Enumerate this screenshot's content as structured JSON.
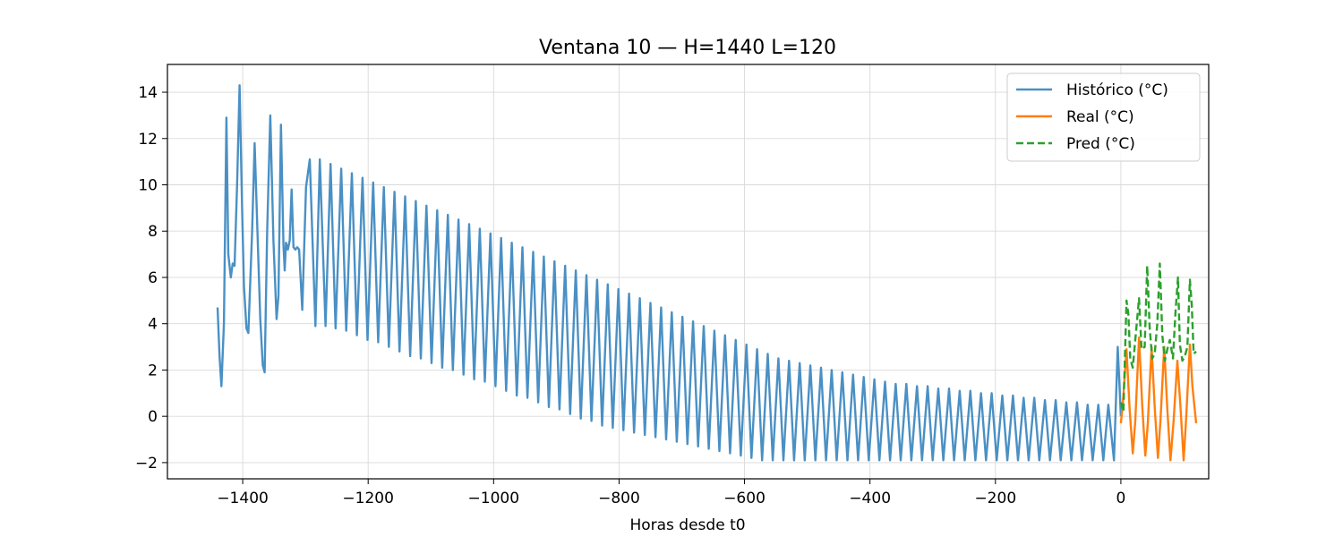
{
  "chart_data": {
    "type": "line",
    "title": "Ventana 10 — H=1440  L=120",
    "xlabel": "Horas desde t0",
    "ylabel": "",
    "xlim": [
      -1520,
      140
    ],
    "ylim": [
      -2.7,
      15.2
    ],
    "xticks": [
      -1400,
      -1200,
      -1000,
      -800,
      -600,
      -400,
      -200,
      0
    ],
    "xtick_labels": [
      "−1400",
      "−1200",
      "−1000",
      "−800",
      "−600",
      "−400",
      "−200",
      "0"
    ],
    "yticks": [
      -2,
      0,
      2,
      4,
      6,
      8,
      10,
      12,
      14
    ],
    "ytick_labels": [
      "−2",
      "0",
      "2",
      "4",
      "6",
      "8",
      "10",
      "12",
      "14"
    ],
    "grid": true,
    "legend_position": "top-right",
    "series": [
      {
        "name": "Histórico (°C)",
        "color": "#4a90c4",
        "dash": "solid",
        "points": [
          [
            -1440,
            4.7
          ],
          [
            -1437,
            2.6
          ],
          [
            -1434,
            1.3
          ],
          [
            -1430,
            4.0
          ],
          [
            -1426,
            12.9
          ],
          [
            -1423,
            7.0
          ],
          [
            -1419,
            6.0
          ],
          [
            -1416,
            6.6
          ],
          [
            -1413,
            6.5
          ],
          [
            -1409,
            10.0
          ],
          [
            -1405,
            14.3
          ],
          [
            -1401,
            9.0
          ],
          [
            -1398,
            5.6
          ],
          [
            -1394,
            3.8
          ],
          [
            -1391,
            3.6
          ],
          [
            -1385,
            8.0
          ],
          [
            -1381,
            11.8
          ],
          [
            -1377,
            8.4
          ],
          [
            -1372,
            4.2
          ],
          [
            -1368,
            2.2
          ],
          [
            -1365,
            1.9
          ],
          [
            -1361,
            8.0
          ],
          [
            -1356,
            13.0
          ],
          [
            -1351,
            7.6
          ],
          [
            -1346,
            4.2
          ],
          [
            -1343,
            5.2
          ],
          [
            -1339,
            12.6
          ],
          [
            -1335,
            7.4
          ],
          [
            -1333,
            6.3
          ],
          [
            -1331,
            7.5
          ],
          [
            -1328,
            7.2
          ],
          [
            -1325,
            7.6
          ],
          [
            -1322,
            9.8
          ],
          [
            -1319,
            7.3
          ],
          [
            -1316,
            7.2
          ],
          [
            -1313,
            7.3
          ],
          [
            -1310,
            7.2
          ],
          [
            -1305,
            4.6
          ],
          [
            -1299,
            9.9
          ],
          [
            -1293,
            11.1
          ],
          [
            -1284,
            3.9
          ],
          [
            -1277,
            11.1
          ],
          [
            -1268,
            3.9
          ],
          [
            -1260,
            10.9
          ],
          [
            -1252,
            3.8
          ],
          [
            -1243,
            10.7
          ],
          [
            -1235,
            3.7
          ],
          [
            -1226,
            10.5
          ],
          [
            -1218,
            3.5
          ],
          [
            -1209,
            10.3
          ],
          [
            -1201,
            3.3
          ],
          [
            -1192,
            10.1
          ],
          [
            -1184,
            3.2
          ],
          [
            -1175,
            9.9
          ],
          [
            -1167,
            3.0
          ],
          [
            -1158,
            9.7
          ],
          [
            -1150,
            2.8
          ],
          [
            -1141,
            9.5
          ],
          [
            -1133,
            2.6
          ],
          [
            -1124,
            9.3
          ],
          [
            -1116,
            2.5
          ],
          [
            -1107,
            9.1
          ],
          [
            -1099,
            2.3
          ],
          [
            -1090,
            8.9
          ],
          [
            -1082,
            2.1
          ],
          [
            -1073,
            8.7
          ],
          [
            -1065,
            2.0
          ],
          [
            -1056,
            8.5
          ],
          [
            -1048,
            1.8
          ],
          [
            -1039,
            8.3
          ],
          [
            -1031,
            1.6
          ],
          [
            -1022,
            8.1
          ],
          [
            -1014,
            1.5
          ],
          [
            -1005,
            7.9
          ],
          [
            -997,
            1.3
          ],
          [
            -988,
            7.7
          ],
          [
            -980,
            1.1
          ],
          [
            -971,
            7.5
          ],
          [
            -963,
            0.9
          ],
          [
            -954,
            7.3
          ],
          [
            -946,
            0.8
          ],
          [
            -937,
            7.1
          ],
          [
            -929,
            0.6
          ],
          [
            -920,
            6.9
          ],
          [
            -912,
            0.4
          ],
          [
            -903,
            6.7
          ],
          [
            -895,
            0.3
          ],
          [
            -886,
            6.5
          ],
          [
            -878,
            0.1
          ],
          [
            -869,
            6.3
          ],
          [
            -861,
            -0.1
          ],
          [
            -852,
            6.1
          ],
          [
            -844,
            -0.2
          ],
          [
            -835,
            5.9
          ],
          [
            -827,
            -0.4
          ],
          [
            -818,
            5.7
          ],
          [
            -810,
            -0.5
          ],
          [
            -801,
            5.5
          ],
          [
            -793,
            -0.6
          ],
          [
            -784,
            5.3
          ],
          [
            -776,
            -0.7
          ],
          [
            -767,
            5.1
          ],
          [
            -759,
            -0.8
          ],
          [
            -750,
            4.9
          ],
          [
            -742,
            -0.9
          ],
          [
            -733,
            4.7
          ],
          [
            -725,
            -1.0
          ],
          [
            -716,
            4.5
          ],
          [
            -708,
            -1.1
          ],
          [
            -699,
            4.3
          ],
          [
            -691,
            -1.2
          ],
          [
            -682,
            4.1
          ],
          [
            -674,
            -1.3
          ],
          [
            -665,
            3.9
          ],
          [
            -657,
            -1.4
          ],
          [
            -648,
            3.7
          ],
          [
            -640,
            -1.5
          ],
          [
            -631,
            3.5
          ],
          [
            -623,
            -1.6
          ],
          [
            -614,
            3.3
          ],
          [
            -606,
            -1.7
          ],
          [
            -597,
            3.1
          ],
          [
            -589,
            -1.8
          ],
          [
            -580,
            2.9
          ],
          [
            -572,
            -1.9
          ],
          [
            -563,
            2.7
          ],
          [
            -555,
            -1.9
          ],
          [
            -546,
            2.5
          ],
          [
            -538,
            -1.9
          ],
          [
            -529,
            2.4
          ],
          [
            -521,
            -1.9
          ],
          [
            -512,
            2.3
          ],
          [
            -504,
            -1.9
          ],
          [
            -495,
            2.2
          ],
          [
            -487,
            -1.9
          ],
          [
            -478,
            2.1
          ],
          [
            -470,
            -1.9
          ],
          [
            -461,
            2.0
          ],
          [
            -453,
            -1.9
          ],
          [
            -444,
            1.9
          ],
          [
            -436,
            -1.9
          ],
          [
            -427,
            1.8
          ],
          [
            -419,
            -1.9
          ],
          [
            -410,
            1.7
          ],
          [
            -402,
            -1.9
          ],
          [
            -393,
            1.6
          ],
          [
            -385,
            -1.9
          ],
          [
            -376,
            1.5
          ],
          [
            -368,
            -1.9
          ],
          [
            -359,
            1.4
          ],
          [
            -351,
            -1.9
          ],
          [
            -342,
            1.4
          ],
          [
            -334,
            -1.9
          ],
          [
            -325,
            1.3
          ],
          [
            -317,
            -1.9
          ],
          [
            -308,
            1.3
          ],
          [
            -300,
            -1.9
          ],
          [
            -291,
            1.2
          ],
          [
            -283,
            -1.9
          ],
          [
            -274,
            1.2
          ],
          [
            -266,
            -1.9
          ],
          [
            -257,
            1.1
          ],
          [
            -249,
            -1.9
          ],
          [
            -240,
            1.1
          ],
          [
            -232,
            -1.9
          ],
          [
            -223,
            1.0
          ],
          [
            -215,
            -1.9
          ],
          [
            -206,
            1.0
          ],
          [
            -198,
            -1.9
          ],
          [
            -189,
            0.9
          ],
          [
            -181,
            -1.9
          ],
          [
            -172,
            0.9
          ],
          [
            -164,
            -1.9
          ],
          [
            -155,
            0.8
          ],
          [
            -147,
            -1.9
          ],
          [
            -138,
            0.8
          ],
          [
            -130,
            -1.9
          ],
          [
            -121,
            0.7
          ],
          [
            -113,
            -1.9
          ],
          [
            -104,
            0.7
          ],
          [
            -96,
            -1.9
          ],
          [
            -87,
            0.6
          ],
          [
            -79,
            -1.9
          ],
          [
            -70,
            0.6
          ],
          [
            -62,
            -1.9
          ],
          [
            -53,
            0.5
          ],
          [
            -45,
            -1.9
          ],
          [
            -36,
            0.5
          ],
          [
            -28,
            -1.9
          ],
          [
            -20,
            0.5
          ],
          [
            -11,
            -1.9
          ],
          [
            -5,
            3.0
          ],
          [
            0,
            0.0
          ]
        ]
      },
      {
        "name": "Real (°C)",
        "color": "#ff7f0e",
        "dash": "solid",
        "points": [
          [
            0,
            -0.3
          ],
          [
            3,
            0.5
          ],
          [
            9,
            2.9
          ],
          [
            14,
            0.3
          ],
          [
            19,
            -1.6
          ],
          [
            23,
            -0.2
          ],
          [
            29,
            3.4
          ],
          [
            34,
            0.5
          ],
          [
            39,
            -1.7
          ],
          [
            43,
            -0.3
          ],
          [
            49,
            3.0
          ],
          [
            54,
            0.4
          ],
          [
            59,
            -1.8
          ],
          [
            63,
            -0.2
          ],
          [
            69,
            3.0
          ],
          [
            74,
            0.3
          ],
          [
            79,
            -1.9
          ],
          [
            84,
            -0.2
          ],
          [
            90,
            2.4
          ],
          [
            95,
            0.4
          ],
          [
            100,
            -1.9
          ],
          [
            104,
            -0.1
          ],
          [
            110,
            3.1
          ],
          [
            114,
            1.3
          ],
          [
            120,
            -0.3
          ]
        ]
      },
      {
        "name": "Pred (°C)",
        "color": "#2ca02c",
        "dash": "dashed",
        "points": [
          [
            0,
            0.6
          ],
          [
            4,
            0.2
          ],
          [
            9,
            5.0
          ],
          [
            12,
            4.4
          ],
          [
            15,
            2.5
          ],
          [
            19,
            2.1
          ],
          [
            24,
            3.6
          ],
          [
            29,
            5.1
          ],
          [
            33,
            2.9
          ],
          [
            38,
            3.0
          ],
          [
            42,
            6.5
          ],
          [
            46,
            3.8
          ],
          [
            50,
            2.5
          ],
          [
            54,
            2.7
          ],
          [
            58,
            4.0
          ],
          [
            62,
            6.6
          ],
          [
            66,
            3.5
          ],
          [
            70,
            2.4
          ],
          [
            74,
            2.9
          ],
          [
            78,
            3.3
          ],
          [
            83,
            2.5
          ],
          [
            87,
            4.5
          ],
          [
            91,
            6.0
          ],
          [
            94,
            3.1
          ],
          [
            98,
            2.4
          ],
          [
            102,
            2.6
          ],
          [
            106,
            3.0
          ],
          [
            110,
            5.9
          ],
          [
            113,
            4.8
          ],
          [
            116,
            2.7
          ],
          [
            120,
            2.8
          ]
        ]
      }
    ]
  }
}
